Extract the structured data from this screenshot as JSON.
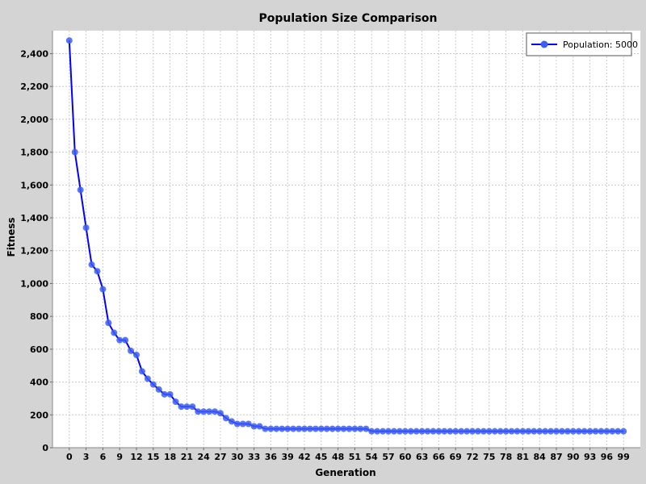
{
  "chart_data": {
    "type": "line",
    "title": "Population Size Comparison",
    "xlabel": "Generation",
    "ylabel": "Fitness",
    "xlim": [
      -3,
      102
    ],
    "ylim": [
      0,
      2540
    ],
    "x_ticks": [
      0,
      3,
      6,
      9,
      12,
      15,
      18,
      21,
      24,
      27,
      30,
      33,
      36,
      39,
      42,
      45,
      48,
      51,
      54,
      57,
      60,
      63,
      66,
      69,
      72,
      75,
      78,
      81,
      84,
      87,
      90,
      93,
      96,
      99
    ],
    "y_ticks": [
      0,
      200,
      400,
      600,
      800,
      1000,
      1200,
      1400,
      1600,
      1800,
      2000,
      2200,
      2400
    ],
    "y_tick_labels": [
      "0",
      "200",
      "400",
      "600",
      "800",
      "1,000",
      "1,200",
      "1,400",
      "1,600",
      "1,800",
      "2,000",
      "2,200",
      "2,400"
    ],
    "grid": true,
    "legend_position": "top-right",
    "colors": {
      "background": "#d4d4d4",
      "plot_background": "#ffffff",
      "grid": "#cccccc",
      "series": "#0000ff",
      "marker": "#3b5ef5"
    },
    "series": [
      {
        "name": "Population: 5000",
        "x": [
          0,
          1,
          2,
          3,
          4,
          5,
          6,
          7,
          8,
          9,
          10,
          11,
          12,
          13,
          14,
          15,
          16,
          17,
          18,
          19,
          20,
          21,
          22,
          23,
          24,
          25,
          26,
          27,
          28,
          29,
          30,
          31,
          32,
          33,
          34,
          35,
          36,
          37,
          38,
          39,
          40,
          41,
          42,
          43,
          44,
          45,
          46,
          47,
          48,
          49,
          50,
          51,
          52,
          53,
          54,
          55,
          56,
          57,
          58,
          59,
          60,
          61,
          62,
          63,
          64,
          65,
          66,
          67,
          68,
          69,
          70,
          71,
          72,
          73,
          74,
          75,
          76,
          77,
          78,
          79,
          80,
          81,
          82,
          83,
          84,
          85,
          86,
          87,
          88,
          89,
          90,
          91,
          92,
          93,
          94,
          95,
          96,
          97,
          98,
          99
        ],
        "values": [
          2480,
          1800,
          1570,
          1340,
          1115,
          1075,
          965,
          760,
          700,
          655,
          655,
          590,
          565,
          465,
          420,
          385,
          355,
          325,
          325,
          280,
          250,
          250,
          250,
          220,
          220,
          220,
          220,
          210,
          180,
          160,
          145,
          145,
          145,
          130,
          130,
          115,
          115,
          115,
          115,
          115,
          115,
          115,
          115,
          115,
          115,
          115,
          115,
          115,
          115,
          115,
          115,
          115,
          115,
          115,
          100,
          100,
          100,
          100,
          100,
          100,
          100,
          100,
          100,
          100,
          100,
          100,
          100,
          100,
          100,
          100,
          100,
          100,
          100,
          100,
          100,
          100,
          100,
          100,
          100,
          100,
          100,
          100,
          100,
          100,
          100,
          100,
          100,
          100,
          100,
          100,
          100,
          100,
          100,
          100,
          100,
          100,
          100,
          100,
          100,
          100
        ]
      }
    ]
  }
}
